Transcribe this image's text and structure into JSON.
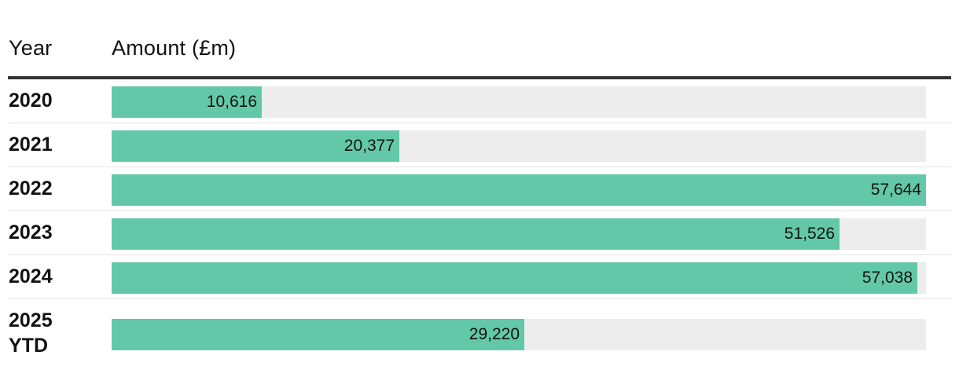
{
  "header": {
    "year_label": "Year",
    "amount_label": "Amount (£m)"
  },
  "colors": {
    "bar": "#62c8a8",
    "track": "#ededed",
    "header_rule": "#333333",
    "divider": "#e3e3e3"
  },
  "chart_data": {
    "type": "bar",
    "orientation": "horizontal",
    "title": "",
    "xlabel": "Amount (£m)",
    "ylabel": "Year",
    "categories": [
      "2020",
      "2021",
      "2022",
      "2023",
      "2024",
      "2025\nYTD"
    ],
    "values": [
      10616,
      20377,
      57644,
      51526,
      57038,
      29220
    ],
    "value_labels": [
      "10,616",
      "20,377",
      "57,644",
      "51,526",
      "57,038",
      "29,220"
    ],
    "xlim": [
      0,
      57644
    ],
    "grid": false,
    "legend": "none"
  }
}
